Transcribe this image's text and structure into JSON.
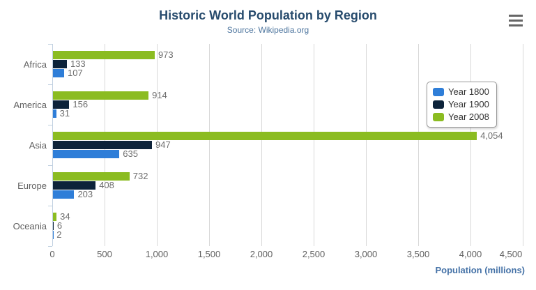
{
  "header": {
    "title": "Historic World Population by Region",
    "subtitle": "Source: Wikipedia.org",
    "menu_icon": "hamburger-icon"
  },
  "chart_data": {
    "type": "bar",
    "orientation": "horizontal",
    "title": "Historic World Population by Region",
    "subtitle": "Source: Wikipedia.org",
    "categories": [
      "Africa",
      "America",
      "Asia",
      "Europe",
      "Oceania"
    ],
    "series": [
      {
        "name": "Year 1800",
        "color": "#2f7ed8",
        "values": [
          107,
          31,
          635,
          203,
          2
        ],
        "labels": [
          "107",
          "31",
          "635",
          "203",
          "2"
        ]
      },
      {
        "name": "Year 1900",
        "color": "#0d233a",
        "values": [
          133,
          156,
          947,
          408,
          6
        ],
        "labels": [
          "133",
          "156",
          "947",
          "408",
          "6"
        ]
      },
      {
        "name": "Year 2008",
        "color": "#8bbc21",
        "values": [
          973,
          914,
          4054,
          732,
          34
        ],
        "labels": [
          "973",
          "914",
          "4,054",
          "732",
          "34"
        ]
      }
    ],
    "bar_order_top_to_bottom": [
      "Year 2008",
      "Year 1900",
      "Year 1800"
    ],
    "xlabel": "Population (millions)",
    "xlim": [
      0,
      4500
    ],
    "x_ticks": [
      0,
      500,
      1000,
      1500,
      2000,
      2500,
      3000,
      3500,
      4000,
      4500
    ],
    "x_tick_labels": [
      "0",
      "500",
      "1,000",
      "1,500",
      "2,000",
      "2,500",
      "3,000",
      "3,500",
      "4,000",
      "4,500"
    ],
    "grid": true,
    "legend_position": "right",
    "colors": {
      "title": "#274b6d",
      "subtitle": "#4d759e",
      "axis_line": "#c0d0e0",
      "gridline": "#d8d8d8",
      "labels": "#606060",
      "xaxis_title": "#4572a7"
    }
  }
}
